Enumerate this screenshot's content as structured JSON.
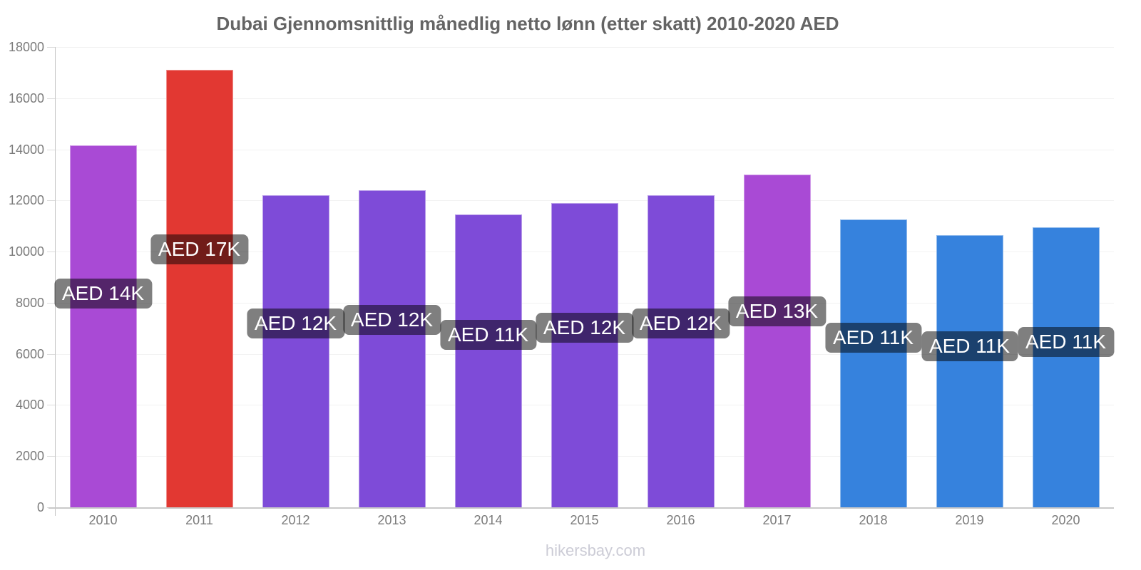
{
  "title": "Dubai Gjennomsnittlig månedlig netto lønn (etter skatt) 2010-2020 AED",
  "footer": "hikersbay.com",
  "chart_data": {
    "type": "bar",
    "title": "Dubai Gjennomsnittlig månedlig netto lønn (etter skatt) 2010-2020 AED",
    "categories": [
      "2010",
      "2011",
      "2012",
      "2013",
      "2014",
      "2015",
      "2016",
      "2017",
      "2018",
      "2019",
      "2020"
    ],
    "values": [
      14150,
      17100,
      12200,
      12400,
      11450,
      11900,
      12200,
      13000,
      11250,
      10650,
      10950
    ],
    "bar_labels": [
      "AED 14K",
      "AED 17K",
      "AED 12K",
      "AED 12K",
      "AED 11K",
      "AED 12K",
      "AED 12K",
      "AED 13K",
      "AED 11K",
      "AED 11K",
      "AED 11K"
    ],
    "bar_colors": [
      "#a94ad5",
      "#e23832",
      "#7e4bd8",
      "#7e4bd8",
      "#7e4bd8",
      "#7e4bd8",
      "#7e4bd8",
      "#a94ad5",
      "#3682dd",
      "#3682dd",
      "#3682dd"
    ],
    "xlabel": "",
    "ylabel": "",
    "ylim": [
      0,
      18000
    ],
    "yticks": [
      0,
      2000,
      4000,
      6000,
      8000,
      10000,
      12000,
      14000,
      16000,
      18000
    ],
    "grid": true,
    "legend": false,
    "currency": "AED"
  },
  "style": {
    "label_bg": "rgba(0,0,0,0.5)",
    "label_text": "#ffffff",
    "title_color": "#646464",
    "axis_text_color": "#7b7b7b",
    "gridline_color": "#f2f2f2",
    "axis_line_color": "#c4c4c4",
    "footer_color": "#ccccd6"
  }
}
